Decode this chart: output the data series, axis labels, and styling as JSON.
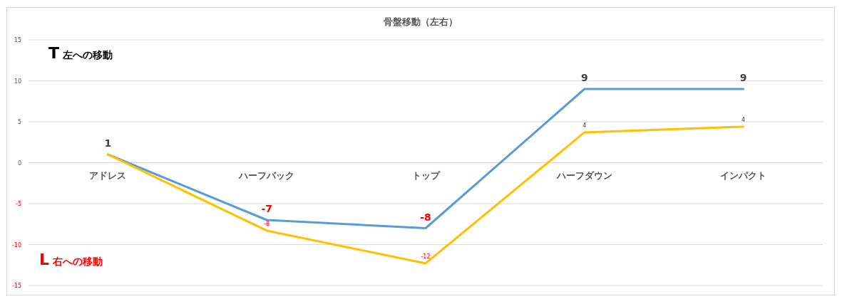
{
  "chart_data": {
    "type": "line",
    "title": "骨盤移動（左右）",
    "categories": [
      "アドレス",
      "ハーフバック",
      "トップ",
      "ハーフダウン",
      "インパクト"
    ],
    "series": [
      {
        "color": "#5b9bd5",
        "values": [
          1,
          -7,
          -8,
          9,
          9
        ],
        "value_labels": [
          "1",
          "-7",
          "-8",
          "9",
          "9"
        ]
      },
      {
        "color": "#ffc000",
        "values": [
          1,
          -8.3,
          -12.3,
          3.7,
          4.4
        ],
        "value_labels": [
          null,
          "-8",
          "-12",
          "4",
          "4"
        ]
      }
    ],
    "ylim": [
      -15,
      15
    ],
    "yticks": [
      -15,
      -10,
      -5,
      0,
      5,
      10,
      15
    ],
    "grid": "y",
    "marker": "none",
    "line_style": "solid",
    "annotations": [
      "T 左への移動",
      "L 右への移動"
    ]
  }
}
